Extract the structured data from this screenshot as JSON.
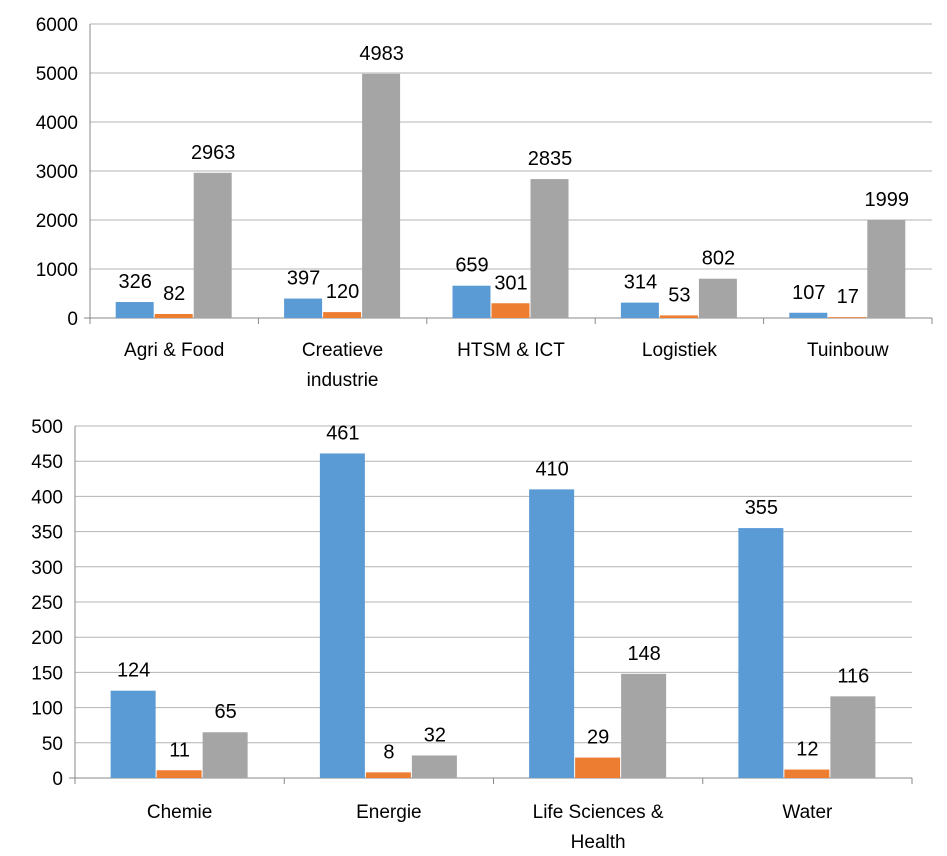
{
  "colors": {
    "series": [
      "#5b9bd5",
      "#ed7d31",
      "#a5a5a5"
    ],
    "grid": "#b3b3b3",
    "axis": "#898989"
  },
  "chart_data": [
    {
      "type": "bar",
      "categories": [
        [
          "Agri & Food"
        ],
        [
          "Creatieve",
          "industrie"
        ],
        [
          "HTSM & ICT"
        ],
        [
          "Logistiek"
        ],
        [
          "Tuinbouw"
        ]
      ],
      "series": [
        {
          "values": [
            326,
            397,
            659,
            314,
            107
          ]
        },
        {
          "values": [
            82,
            120,
            301,
            53,
            17
          ]
        },
        {
          "values": [
            2963,
            4983,
            2835,
            802,
            1999
          ]
        }
      ],
      "ylim": [
        0,
        6000
      ],
      "yticks": [
        0,
        1000,
        2000,
        3000,
        4000,
        5000,
        6000
      ],
      "grid": true,
      "legend": "none"
    },
    {
      "type": "bar",
      "categories": [
        [
          "Chemie"
        ],
        [
          "Energie"
        ],
        [
          "Life Sciences &",
          "Health"
        ],
        [
          "Water"
        ]
      ],
      "series": [
        {
          "values": [
            124,
            461,
            410,
            355
          ]
        },
        {
          "values": [
            11,
            8,
            29,
            12
          ]
        },
        {
          "values": [
            65,
            32,
            148,
            116
          ]
        }
      ],
      "ylim": [
        0,
        500
      ],
      "yticks": [
        0,
        50,
        100,
        150,
        200,
        250,
        300,
        350,
        400,
        450,
        500
      ],
      "grid": true,
      "legend": "none"
    }
  ]
}
